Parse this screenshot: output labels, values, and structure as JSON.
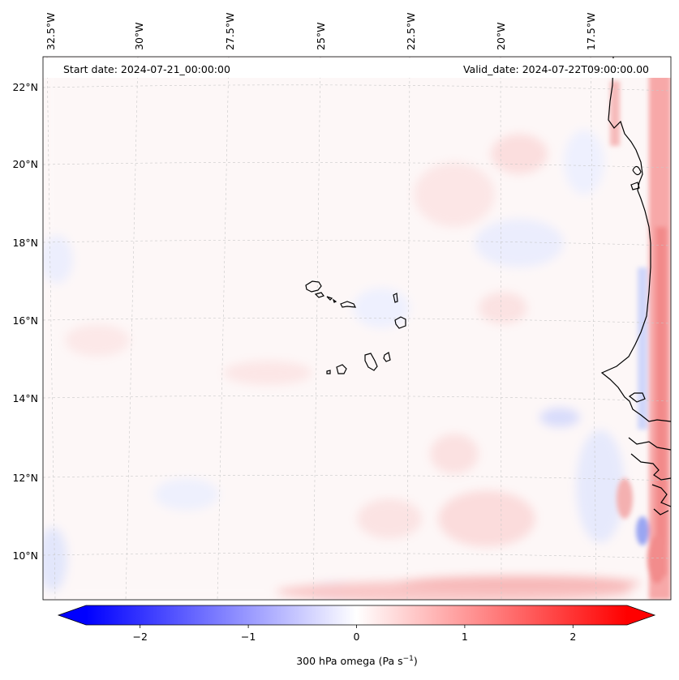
{
  "map": {
    "start_date_text": "Start date: 2024-07-21_00:00:00",
    "valid_date_text": "Valid_date: 2024-07-22T09:00:00.00",
    "lon_labels": [
      "32.5°W",
      "30°W",
      "27.5°W",
      "25°W",
      "22.5°W",
      "20°W",
      "17.5°W"
    ],
    "lat_labels": [
      "22°N",
      "20°N",
      "18°N",
      "16°N",
      "14°N",
      "12°N",
      "10°N"
    ],
    "lon_values": [
      -32.5,
      -30,
      -27.5,
      -25,
      -22.5,
      -20,
      -17.5
    ],
    "lat_values": [
      22,
      20,
      18,
      16,
      14,
      12,
      10
    ],
    "extent": {
      "lon_min": -33.0,
      "lon_max": -15.5,
      "lat_min": 8.9,
      "lat_max": 22.8
    },
    "grid": true,
    "field": "300 hPa omega",
    "colors": {
      "negative": "#0000ff",
      "zero": "#ffffff",
      "positive": "#ff0000",
      "coast": "#000000",
      "grid": "#bbbbbb"
    }
  },
  "colorbar": {
    "label": "300 hPa omega (Pa s",
    "label_sup": "−1",
    "label_end": ")",
    "ticks": [
      -2,
      -1,
      0,
      1,
      2
    ],
    "tick_labels": [
      "−2",
      "−1",
      "0",
      "1",
      "2"
    ],
    "vmin": -2.5,
    "vmax": 2.5,
    "extend": "both"
  }
}
